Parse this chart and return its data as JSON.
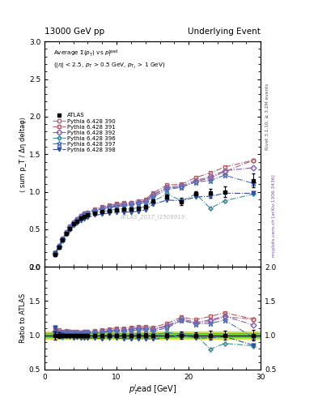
{
  "title_left": "13000 GeV pp",
  "title_right": "Underlying Event",
  "right_label_top": "Rivet 3.1.10, ≥ 3.2M events",
  "right_label_bot": "mcplots.cern.ch [arXiv:1306.3436]",
  "watermark": "ATLAS_2017_I1509919",
  "ann_text": "Average Σ(p_T) vs p_T^{lead} (|η| < 2.5, p_T > 0.5 GeV, p_{T_1} > 1 GeV)",
  "xlabel": "p_T^l ead [GeV]",
  "ylabel_main": "⟨ sum p_T / Δη deltaφ⟩",
  "ylabel_ratio": "Ratio to ATLAS",
  "xlim": [
    0,
    30
  ],
  "ylim_main": [
    0,
    3
  ],
  "ylim_ratio": [
    0.5,
    2
  ],
  "atlas_x": [
    1.5,
    2.0,
    2.5,
    3.0,
    3.5,
    4.0,
    4.5,
    5.0,
    5.5,
    6.0,
    7.0,
    8.0,
    9.0,
    10.0,
    11.0,
    12.0,
    13.0,
    14.0,
    15.0,
    17.0,
    19.0,
    21.0,
    23.0,
    25.0,
    29.0
  ],
  "atlas_y": [
    0.17,
    0.26,
    0.36,
    0.44,
    0.51,
    0.57,
    0.61,
    0.65,
    0.67,
    0.69,
    0.72,
    0.74,
    0.75,
    0.76,
    0.77,
    0.77,
    0.78,
    0.8,
    0.88,
    0.93,
    0.87,
    0.97,
    0.98,
    1.0,
    1.15
  ],
  "atlas_yerr": [
    0.01,
    0.01,
    0.01,
    0.01,
    0.01,
    0.01,
    0.01,
    0.01,
    0.01,
    0.01,
    0.01,
    0.01,
    0.01,
    0.01,
    0.01,
    0.01,
    0.01,
    0.02,
    0.02,
    0.03,
    0.05,
    0.04,
    0.06,
    0.07,
    0.09
  ],
  "models": [
    {
      "label": "Pythia 6.428 390",
      "color": "#c06080",
      "linestyle": "-.",
      "marker": "o",
      "markerfacecolor": "none",
      "x": [
        1.5,
        2.0,
        2.5,
        3.0,
        3.5,
        4.0,
        4.5,
        5.0,
        5.5,
        6.0,
        7.0,
        8.0,
        9.0,
        10.0,
        11.0,
        12.0,
        13.0,
        14.0,
        15.0,
        17.0,
        19.0,
        21.0,
        23.0,
        25.0,
        29.0
      ],
      "y": [
        0.18,
        0.27,
        0.37,
        0.46,
        0.53,
        0.59,
        0.63,
        0.67,
        0.7,
        0.72,
        0.75,
        0.78,
        0.8,
        0.82,
        0.83,
        0.84,
        0.86,
        0.88,
        0.95,
        1.05,
        1.06,
        1.14,
        1.18,
        1.27,
        1.42
      ]
    },
    {
      "label": "Pythia 6.428 391",
      "color": "#b06060",
      "linestyle": "-.",
      "marker": "s",
      "markerfacecolor": "none",
      "x": [
        1.5,
        2.0,
        2.5,
        3.0,
        3.5,
        4.0,
        4.5,
        5.0,
        5.5,
        6.0,
        7.0,
        8.0,
        9.0,
        10.0,
        11.0,
        12.0,
        13.0,
        14.0,
        15.0,
        17.0,
        19.0,
        21.0,
        23.0,
        25.0,
        29.0
      ],
      "y": [
        0.19,
        0.28,
        0.38,
        0.47,
        0.54,
        0.6,
        0.64,
        0.68,
        0.71,
        0.73,
        0.77,
        0.8,
        0.82,
        0.84,
        0.85,
        0.86,
        0.88,
        0.9,
        0.98,
        1.09,
        1.1,
        1.19,
        1.25,
        1.33,
        1.42
      ]
    },
    {
      "label": "Pythia 6.428 392",
      "color": "#8060b0",
      "linestyle": "-.",
      "marker": "D",
      "markerfacecolor": "none",
      "x": [
        1.5,
        2.0,
        2.5,
        3.0,
        3.5,
        4.0,
        4.5,
        5.0,
        5.5,
        6.0,
        7.0,
        8.0,
        9.0,
        10.0,
        11.0,
        12.0,
        13.0,
        14.0,
        15.0,
        17.0,
        19.0,
        21.0,
        23.0,
        25.0,
        29.0
      ],
      "y": [
        0.18,
        0.27,
        0.37,
        0.46,
        0.53,
        0.59,
        0.63,
        0.67,
        0.7,
        0.72,
        0.75,
        0.78,
        0.8,
        0.82,
        0.83,
        0.84,
        0.86,
        0.88,
        0.96,
        1.06,
        1.08,
        1.15,
        1.2,
        1.28,
        1.32
      ]
    },
    {
      "label": "Pythia 6.428 396",
      "color": "#4090a0",
      "linestyle": "-.",
      "marker": "P",
      "markerfacecolor": "none",
      "x": [
        1.5,
        2.0,
        2.5,
        3.0,
        3.5,
        4.0,
        4.5,
        5.0,
        5.5,
        6.0,
        7.0,
        8.0,
        9.0,
        10.0,
        11.0,
        12.0,
        13.0,
        14.0,
        15.0,
        17.0,
        19.0,
        21.0,
        23.0,
        25.0,
        29.0
      ],
      "y": [
        0.17,
        0.26,
        0.35,
        0.44,
        0.5,
        0.56,
        0.6,
        0.64,
        0.67,
        0.69,
        0.72,
        0.74,
        0.75,
        0.77,
        0.77,
        0.77,
        0.79,
        0.8,
        0.87,
        0.97,
        0.88,
        0.97,
        0.78,
        0.88,
        0.97
      ]
    },
    {
      "label": "Pythia 6.428 397",
      "color": "#5070c0",
      "linestyle": "-.",
      "marker": "*",
      "markerfacecolor": "none",
      "x": [
        1.5,
        2.0,
        2.5,
        3.0,
        3.5,
        4.0,
        4.5,
        5.0,
        5.5,
        6.0,
        7.0,
        8.0,
        9.0,
        10.0,
        11.0,
        12.0,
        13.0,
        14.0,
        15.0,
        17.0,
        19.0,
        21.0,
        23.0,
        25.0,
        29.0
      ],
      "y": [
        0.18,
        0.27,
        0.37,
        0.46,
        0.53,
        0.59,
        0.63,
        0.67,
        0.7,
        0.72,
        0.75,
        0.77,
        0.79,
        0.8,
        0.81,
        0.82,
        0.84,
        0.86,
        0.93,
        1.03,
        1.06,
        1.13,
        1.15,
        1.22,
        1.11
      ]
    },
    {
      "label": "Pythia 6.428 398",
      "color": "#3050a0",
      "linestyle": "-.",
      "marker": "v",
      "markerfacecolor": "#3050a0",
      "x": [
        1.5,
        2.0,
        2.5,
        3.0,
        3.5,
        4.0,
        4.5,
        5.0,
        5.5,
        6.0,
        7.0,
        8.0,
        9.0,
        10.0,
        11.0,
        12.0,
        13.0,
        14.0,
        15.0,
        17.0,
        19.0,
        21.0,
        23.0,
        25.0,
        29.0
      ],
      "y": [
        0.19,
        0.26,
        0.36,
        0.43,
        0.5,
        0.55,
        0.59,
        0.62,
        0.64,
        0.66,
        0.69,
        0.7,
        0.72,
        0.73,
        0.73,
        0.73,
        0.74,
        0.76,
        0.83,
        0.89,
        0.88,
        0.93,
        0.94,
        0.98,
        0.98
      ]
    }
  ],
  "atlas_band_ylow": 0.97,
  "atlas_band_yhigh": 1.03,
  "atlas_band_color": "#00cc00",
  "atlas_band_alpha": 0.5,
  "atlas_syst_ylow": 0.95,
  "atlas_syst_yhigh": 1.05,
  "atlas_syst_color": "#cccc00",
  "atlas_syst_alpha": 0.6
}
